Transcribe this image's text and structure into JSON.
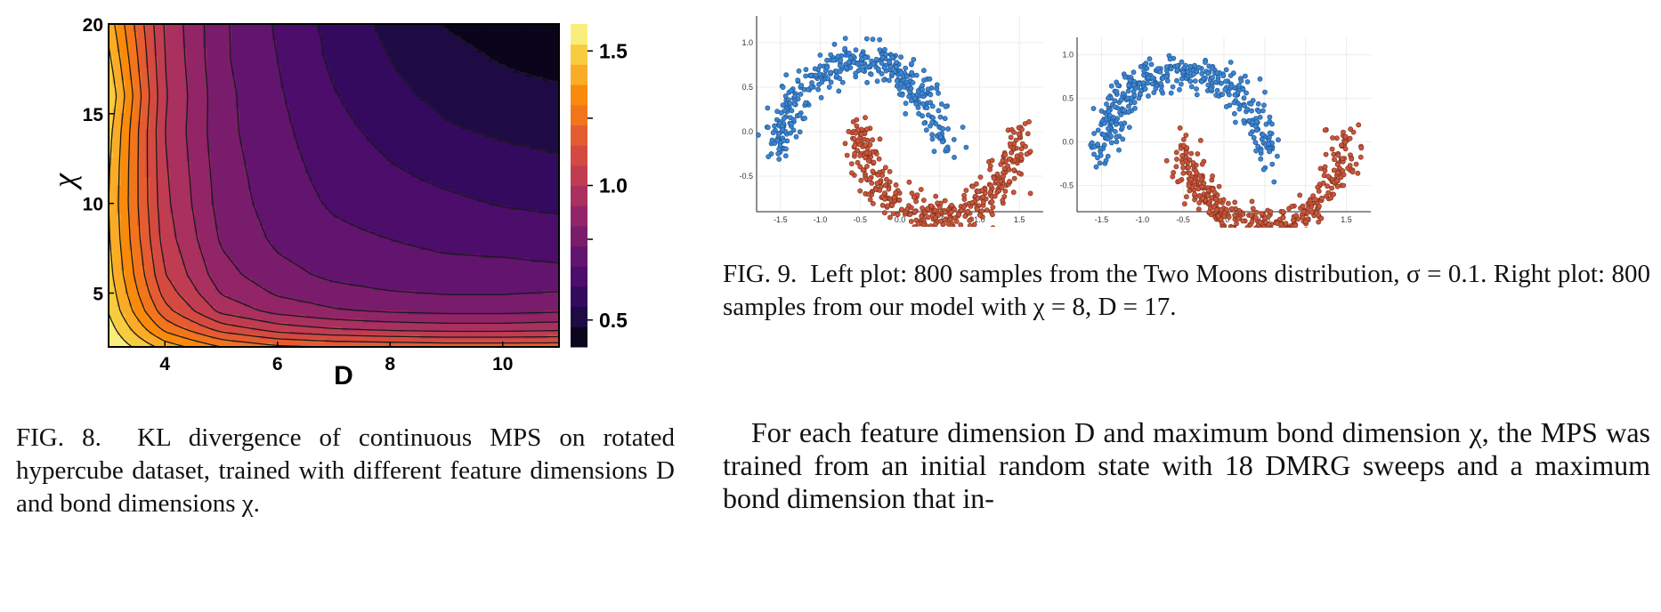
{
  "fig8": {
    "caption_prefix": "FIG. 8.",
    "caption_text": "KL divergence of continuous MPS on rotated hypercube dataset, trained with different feature dimensions D and bond dimensions χ."
  },
  "fig9": {
    "caption_prefix": "FIG. 9.",
    "caption_text": "Left plot: 800 samples from the Two Moons distribution, σ = 0.1. Right plot: 800 samples from our model with χ = 8, D = 17."
  },
  "body": {
    "paragraph": "For each feature dimension D and maximum bond dimension χ, the MPS was trained from an initial random state with 18 DMRG sweeps and a maximum bond dimension that in-"
  },
  "colors": {
    "moon_upper": "#3a86d4",
    "moon_lower": "#c8573c"
  },
  "chart_data": [
    {
      "type": "heatmap",
      "title": "",
      "xlabel": "D",
      "ylabel": "χ",
      "x_ticks": [
        4,
        6,
        8,
        10
      ],
      "y_ticks": [
        5,
        10,
        15,
        20
      ],
      "xlim": [
        3,
        11
      ],
      "ylim": [
        2,
        20
      ],
      "colorbar": {
        "ticks": [
          0.5,
          1.0,
          1.5
        ],
        "tick_labels": [
          "0.5",
          "1.0",
          "1.5"
        ],
        "range": [
          0.4,
          1.6
        ]
      },
      "D": [
        3,
        4,
        5,
        6,
        7,
        8,
        9,
        10,
        11
      ],
      "chi": [
        2,
        3,
        4,
        5,
        6,
        8,
        10,
        12,
        14,
        16,
        18,
        20
      ],
      "z": [
        [
          1.6,
          1.42,
          1.3,
          1.24,
          1.22,
          1.21,
          1.2,
          1.2,
          1.2
        ],
        [
          1.56,
          1.28,
          1.12,
          1.04,
          1.0,
          0.98,
          0.97,
          0.97,
          0.98
        ],
        [
          1.52,
          1.18,
          0.98,
          0.9,
          0.86,
          0.84,
          0.83,
          0.83,
          0.84
        ],
        [
          1.5,
          1.12,
          0.92,
          0.84,
          0.8,
          0.78,
          0.77,
          0.77,
          0.78
        ],
        [
          1.48,
          1.08,
          0.88,
          0.8,
          0.76,
          0.74,
          0.73,
          0.73,
          0.72
        ],
        [
          1.46,
          1.04,
          0.84,
          0.76,
          0.72,
          0.7,
          0.68,
          0.67,
          0.66
        ],
        [
          1.45,
          1.02,
          0.82,
          0.74,
          0.69,
          0.66,
          0.64,
          0.62,
          0.61
        ],
        [
          1.46,
          1.01,
          0.81,
          0.73,
          0.67,
          0.63,
          0.6,
          0.58,
          0.57
        ],
        [
          1.48,
          1.0,
          0.8,
          0.72,
          0.65,
          0.6,
          0.56,
          0.54,
          0.52
        ],
        [
          1.52,
          1.01,
          0.8,
          0.71,
          0.63,
          0.57,
          0.53,
          0.5,
          0.49
        ],
        [
          1.47,
          1.0,
          0.79,
          0.7,
          0.61,
          0.55,
          0.5,
          0.47,
          0.45
        ],
        [
          1.42,
          0.99,
          0.79,
          0.69,
          0.6,
          0.53,
          0.47,
          0.44,
          0.42
        ]
      ]
    },
    {
      "type": "scatter",
      "title": "",
      "x_ticks": [
        "-1.5",
        "-1.0",
        "-0.5",
        "0.0",
        "0.5",
        "1.0",
        "1.5"
      ],
      "y_ticks": [
        "-0.5",
        "0.0",
        "0.5",
        "1.0"
      ],
      "xlim": [
        -1.8,
        1.8
      ],
      "ylim": [
        -0.9,
        1.3
      ],
      "series": [
        {
          "noise": 0.1,
          "n": 400,
          "shape": "upper-moon",
          "seed": 11
        },
        {
          "noise": 0.1,
          "n": 400,
          "shape": "lower-moon",
          "seed": 23
        }
      ]
    },
    {
      "type": "scatter",
      "title": "",
      "x_ticks": [
        "-1.5",
        "-1.0",
        "-0.5",
        "0.0",
        "0.5",
        "1.0",
        "1.5"
      ],
      "y_ticks": [
        "-0.5",
        "0.0",
        "0.5",
        "1.0"
      ],
      "xlim": [
        -1.8,
        1.8
      ],
      "ylim": [
        -0.8,
        1.2
      ],
      "series": [
        {
          "noise": 0.1,
          "n": 400,
          "shape": "upper-moon",
          "seed": 37
        },
        {
          "noise": 0.1,
          "n": 400,
          "shape": "lower-moon",
          "seed": 53
        }
      ]
    }
  ]
}
